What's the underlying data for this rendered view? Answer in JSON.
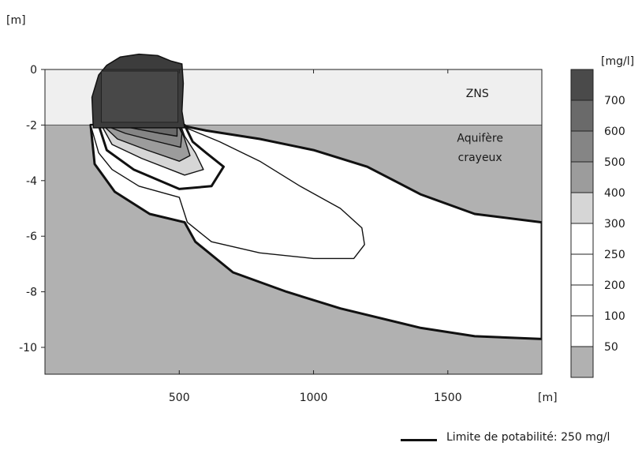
{
  "chart_data": {
    "type": "contour",
    "y_unit": "[m]",
    "x_unit": "[m]",
    "xlim": [
      0,
      1850
    ],
    "ylim": [
      -11,
      0
    ],
    "x_ticks": [
      500,
      1000,
      1500
    ],
    "y_ticks": [
      0,
      -2,
      -4,
      -6,
      -8,
      -10
    ],
    "layer_boundary_depth": -2,
    "layers": [
      {
        "label": "ZNS",
        "top": 0,
        "bottom": -2,
        "color": "#efefef"
      },
      {
        "label": "Aquifère crayeux",
        "top": -2,
        "bottom": -11,
        "color": "#b1b1b1"
      }
    ],
    "colorbar": {
      "unit": "[mg/l]",
      "ticks": [
        "700",
        "600",
        "500",
        "400",
        "300",
        "250",
        "200",
        "100",
        "50"
      ],
      "bands": [
        "#4a4a4a",
        "#6a6a6a",
        "#858585",
        "#9c9c9c",
        "#d6d6d6",
        "#ffffff",
        "#ffffff",
        "#ffffff",
        "#ffffff",
        "#b1b1b1"
      ]
    },
    "contours": [
      {
        "level": 50,
        "fill": "#ffffff",
        "bold": true,
        "points": [
          [
            170,
            -2
          ],
          [
            185,
            -3.4
          ],
          [
            260,
            -4.4
          ],
          [
            390,
            -5.2
          ],
          [
            520,
            -5.5
          ],
          [
            560,
            -6.2
          ],
          [
            700,
            -7.3
          ],
          [
            900,
            -8.0
          ],
          [
            1100,
            -8.6
          ],
          [
            1400,
            -9.3
          ],
          [
            1600,
            -9.6
          ],
          [
            1850,
            -9.7
          ],
          [
            1850,
            -5.5
          ],
          [
            1600,
            -5.2
          ],
          [
            1400,
            -4.5
          ],
          [
            1200,
            -3.5
          ],
          [
            1000,
            -2.9
          ],
          [
            800,
            -2.5
          ],
          [
            600,
            -2.2
          ],
          [
            500,
            -2.0
          ]
        ]
      },
      {
        "level": 100,
        "fill": "#ffffff",
        "bold": false,
        "points": [
          [
            170,
            -2
          ],
          [
            200,
            -3.0
          ],
          [
            250,
            -3.6
          ],
          [
            350,
            -4.2
          ],
          [
            500,
            -4.6
          ],
          [
            530,
            -5.5
          ],
          [
            620,
            -6.2
          ],
          [
            800,
            -6.6
          ],
          [
            1000,
            -6.8
          ],
          [
            1150,
            -6.8
          ],
          [
            1190,
            -6.3
          ],
          [
            1180,
            -5.7
          ],
          [
            1100,
            -5.0
          ],
          [
            950,
            -4.2
          ],
          [
            800,
            -3.3
          ],
          [
            650,
            -2.6
          ],
          [
            550,
            -2.2
          ],
          [
            500,
            -2.0
          ]
        ]
      },
      {
        "level": 250,
        "fill": "#ffffff",
        "bold": true,
        "points": [
          [
            200,
            -2
          ],
          [
            230,
            -2.9
          ],
          [
            330,
            -3.6
          ],
          [
            500,
            -4.3
          ],
          [
            620,
            -4.2
          ],
          [
            665,
            -3.5
          ],
          [
            600,
            -3.0
          ],
          [
            550,
            -2.6
          ],
          [
            520,
            -2.0
          ]
        ]
      },
      {
        "level": 300,
        "fill": "#d6d6d6",
        "bold": false,
        "points": [
          [
            210,
            -2
          ],
          [
            250,
            -2.7
          ],
          [
            360,
            -3.2
          ],
          [
            520,
            -3.8
          ],
          [
            590,
            -3.6
          ],
          [
            560,
            -3.0
          ],
          [
            520,
            -2.4
          ],
          [
            505,
            -2.0
          ]
        ]
      },
      {
        "level": 400,
        "fill": "#9c9c9c",
        "bold": false,
        "points": [
          [
            215,
            -2
          ],
          [
            270,
            -2.5
          ],
          [
            380,
            -2.9
          ],
          [
            500,
            -3.3
          ],
          [
            540,
            -3.1
          ],
          [
            520,
            -2.5
          ],
          [
            500,
            -2.0
          ]
        ]
      },
      {
        "level": 500,
        "fill": "#858585",
        "bold": false,
        "points": [
          [
            220,
            -2
          ],
          [
            300,
            -2.3
          ],
          [
            420,
            -2.6
          ],
          [
            505,
            -2.8
          ],
          [
            510,
            -2.3
          ],
          [
            495,
            -2.0
          ]
        ]
      },
      {
        "level": 600,
        "fill": "#6a6a6a",
        "bold": false,
        "points": [
          [
            222,
            -2
          ],
          [
            320,
            -2.1
          ],
          [
            430,
            -2.3
          ],
          [
            492,
            -2.4
          ],
          [
            492,
            -2.0
          ]
        ]
      }
    ],
    "source_zone": {
      "level": 700,
      "fill": "#484848",
      "x": [
        210,
        495
      ],
      "y": [
        -1.9,
        0.5
      ],
      "outline": [
        [
          180,
          -2.1
        ],
        [
          175,
          -1.0
        ],
        [
          200,
          -0.2
        ],
        [
          230,
          0.15
        ],
        [
          280,
          0.45
        ],
        [
          350,
          0.55
        ],
        [
          420,
          0.5
        ],
        [
          470,
          0.3
        ],
        [
          510,
          0.2
        ],
        [
          515,
          -0.5
        ],
        [
          510,
          -1.5
        ],
        [
          520,
          -2.1
        ]
      ]
    },
    "annotations": [
      {
        "text": "ZNS",
        "x": 1610,
        "y": -1.0
      },
      {
        "text": "Aquifère",
        "x": 1620,
        "y": -2.6
      },
      {
        "text": "crayeux",
        "x": 1620,
        "y": -3.3
      }
    ]
  },
  "legend": {
    "line_label": "Limite de potabilité: 250 mg/l"
  }
}
